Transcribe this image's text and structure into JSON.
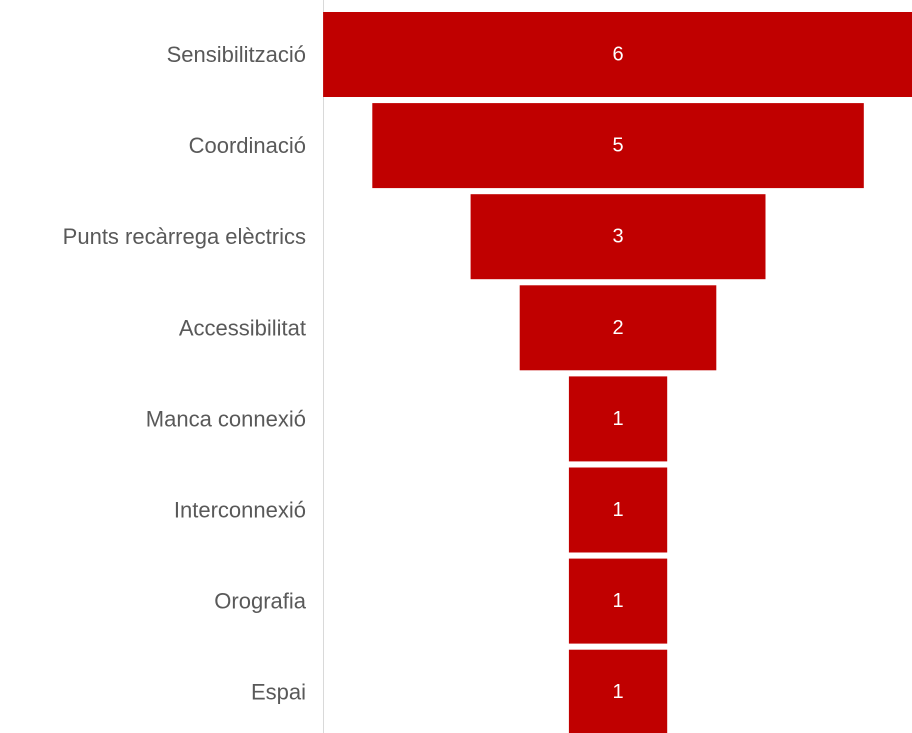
{
  "chart_data": {
    "type": "bar",
    "subtype": "funnel",
    "categories": [
      "Sensibilització",
      "Coordinació",
      "Punts recàrrega elèctrics",
      "Accessibilitat",
      "Manca connexió",
      "Interconnexió",
      "Orografia",
      "Espai"
    ],
    "values": [
      6,
      5,
      3,
      2,
      1,
      1,
      1,
      1
    ],
    "title": "",
    "xlabel": "",
    "ylabel": "",
    "grid": false,
    "legend": "none",
    "bar_color": "#C00000",
    "label_color": "#595959",
    "axis_color": "#D9D9D9"
  }
}
